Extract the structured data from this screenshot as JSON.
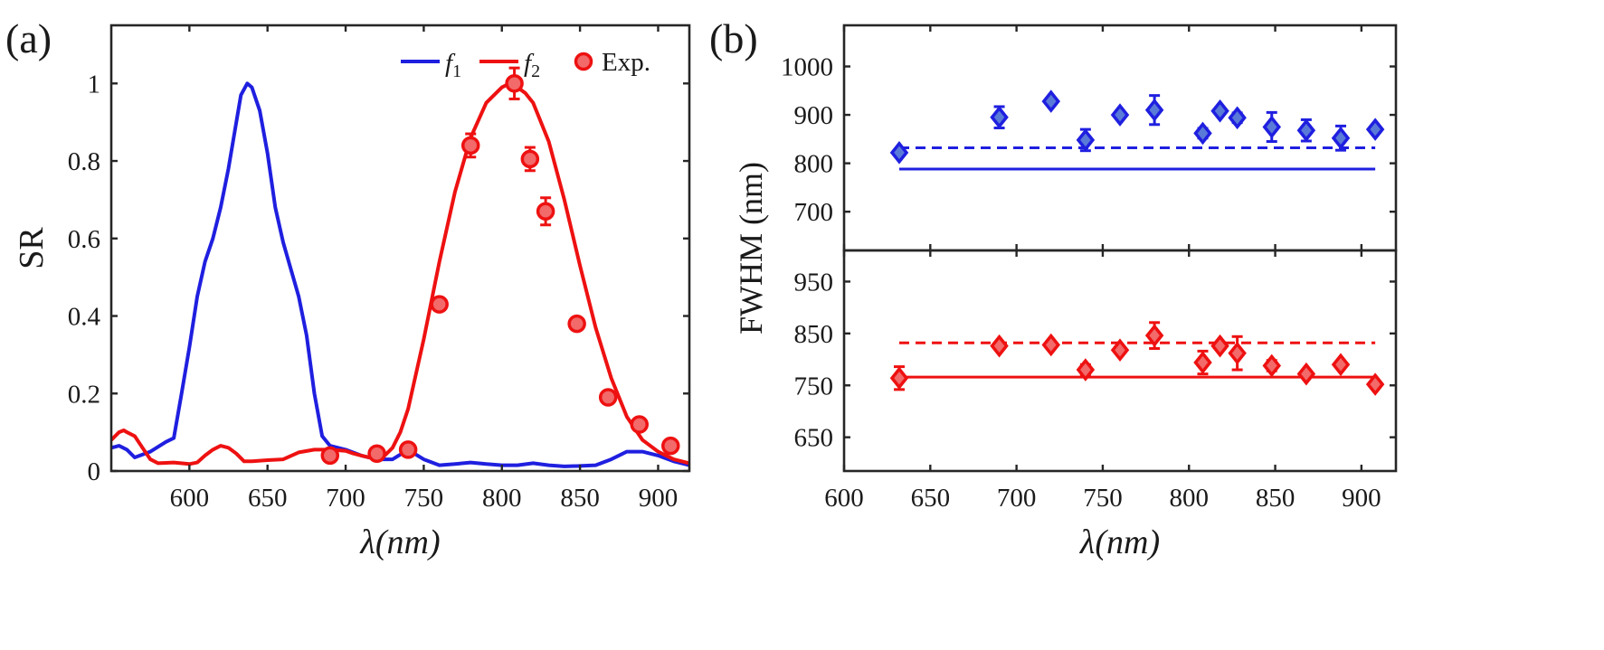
{
  "colors": {
    "blue": "#1f1fe0",
    "red": "#ee1111",
    "red_fill": "#f26a6a",
    "blue_fill": "#5a7ad8",
    "axis": "#262626"
  },
  "chart_data": [
    {
      "id": "a",
      "panel_label": "(a)",
      "type": "line",
      "ylabel": "SR",
      "xlabel_symbol": "λ",
      "xlabel_unit": "(nm)",
      "xlim": [
        550,
        920
      ],
      "ylim": [
        0,
        1.15
      ],
      "xticks": [
        600,
        650,
        700,
        750,
        800,
        850,
        900
      ],
      "yticks": [
        0,
        0.2,
        0.4,
        0.6,
        0.8,
        1
      ],
      "ytick_labels": [
        "0",
        "0.2",
        "0.4",
        "0.6",
        "0.8",
        "1"
      ],
      "legend": {
        "position": "top-right",
        "entries": [
          {
            "symbol": "f",
            "sub": "1",
            "kind": "line",
            "color": "blue"
          },
          {
            "symbol": "f",
            "sub": "2",
            "kind": "line",
            "color": "red"
          },
          {
            "text": "Exp.",
            "kind": "marker",
            "color": "red"
          }
        ]
      },
      "series": [
        {
          "name": "f1",
          "color": "blue",
          "x": [
            550,
            555,
            560,
            565,
            575,
            585,
            590,
            595,
            600,
            605,
            610,
            615,
            620,
            625,
            630,
            633,
            637,
            640,
            645,
            650,
            655,
            660,
            665,
            670,
            675,
            680,
            685,
            690,
            700,
            710,
            720,
            730,
            740,
            750,
            760,
            770,
            780,
            790,
            800,
            810,
            820,
            830,
            840,
            850,
            860,
            870,
            880,
            890,
            900,
            910,
            920
          ],
          "y": [
            0.06,
            0.065,
            0.055,
            0.035,
            0.05,
            0.075,
            0.085,
            0.2,
            0.32,
            0.45,
            0.54,
            0.6,
            0.68,
            0.78,
            0.9,
            0.97,
            1.0,
            0.99,
            0.93,
            0.82,
            0.68,
            0.59,
            0.52,
            0.45,
            0.35,
            0.2,
            0.09,
            0.065,
            0.055,
            0.04,
            0.03,
            0.03,
            0.055,
            0.03,
            0.015,
            0.018,
            0.022,
            0.018,
            0.015,
            0.015,
            0.02,
            0.015,
            0.012,
            0.013,
            0.015,
            0.03,
            0.05,
            0.05,
            0.04,
            0.025,
            0.015
          ]
        },
        {
          "name": "f2",
          "color": "red",
          "x": [
            550,
            555,
            558,
            560,
            565,
            570,
            575,
            580,
            590,
            600,
            605,
            610,
            615,
            620,
            625,
            630,
            635,
            640,
            650,
            660,
            670,
            680,
            690,
            700,
            705,
            710,
            715,
            720,
            725,
            730,
            735,
            740,
            750,
            760,
            770,
            780,
            790,
            800,
            805,
            810,
            815,
            820,
            830,
            840,
            850,
            860,
            870,
            880,
            890,
            900,
            910,
            920
          ],
          "y": [
            0.08,
            0.1,
            0.105,
            0.1,
            0.09,
            0.06,
            0.03,
            0.02,
            0.022,
            0.018,
            0.022,
            0.04,
            0.055,
            0.065,
            0.06,
            0.045,
            0.025,
            0.025,
            0.028,
            0.03,
            0.048,
            0.055,
            0.055,
            0.052,
            0.045,
            0.04,
            0.035,
            0.035,
            0.04,
            0.06,
            0.1,
            0.16,
            0.34,
            0.54,
            0.72,
            0.86,
            0.95,
            0.99,
            1.0,
            0.99,
            0.975,
            0.95,
            0.85,
            0.7,
            0.53,
            0.37,
            0.24,
            0.14,
            0.08,
            0.05,
            0.03,
            0.02
          ]
        }
      ],
      "experiment": {
        "color": "red",
        "x": [
          690,
          720,
          740,
          760,
          780,
          808,
          818,
          828,
          848,
          868,
          888,
          908
        ],
        "y": [
          0.04,
          0.045,
          0.055,
          0.43,
          0.84,
          1.0,
          0.805,
          0.67,
          0.38,
          0.19,
          0.12,
          0.065
        ],
        "err": [
          0.01,
          0.01,
          0.01,
          0.01,
          0.03,
          0.04,
          0.03,
          0.035,
          0.01,
          0.01,
          0.01,
          0.01
        ]
      }
    },
    {
      "id": "b",
      "panel_label": "(b)",
      "type": "scatter",
      "ylabel": "FWHM (nm)",
      "xlabel_symbol": "λ",
      "xlabel_unit": "(nm)",
      "xlim": [
        600,
        920
      ],
      "xticks": [
        600,
        650,
        700,
        750,
        800,
        850,
        900
      ],
      "subplots": [
        {
          "id": "b-top",
          "color": "blue",
          "ylim": [
            620,
            1085
          ],
          "yticks": [
            700,
            800,
            900,
            1000
          ],
          "dashed_level": 832,
          "solid_level": 788,
          "x": [
            632,
            690,
            720,
            740,
            760,
            780,
            808,
            818,
            828,
            848,
            868,
            888,
            908
          ],
          "y": [
            822,
            895,
            928,
            848,
            900,
            910,
            862,
            908,
            894,
            875,
            868,
            852,
            870
          ],
          "err": [
            8,
            22,
            8,
            22,
            8,
            30,
            10,
            8,
            10,
            30,
            22,
            25,
            8
          ]
        },
        {
          "id": "b-bottom",
          "color": "red",
          "ylim": [
            585,
            1010
          ],
          "yticks": [
            650,
            750,
            850,
            950
          ],
          "dashed_level": 832,
          "solid_level": 766,
          "x": [
            632,
            690,
            720,
            740,
            760,
            780,
            808,
            818,
            828,
            848,
            868,
            888,
            908
          ],
          "y": [
            764,
            826,
            828,
            780,
            818,
            846,
            794,
            826,
            812,
            788,
            772,
            790,
            752
          ],
          "err": [
            22,
            8,
            8,
            10,
            8,
            25,
            22,
            8,
            32,
            10,
            8,
            8,
            8
          ]
        }
      ]
    }
  ]
}
